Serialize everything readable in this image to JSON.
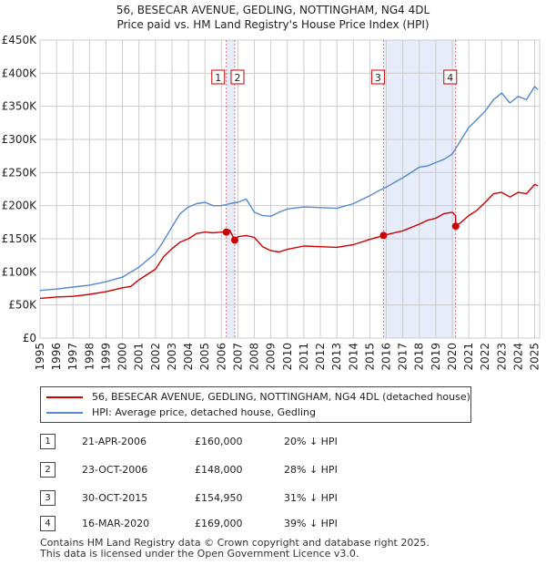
{
  "title_line1": "56, BESECAR AVENUE, GEDLING, NOTTINGHAM, NG4 4DL",
  "title_line2": "Price paid vs. HM Land Registry's House Price Index (HPI)",
  "legend": {
    "red_label": "56, BESECAR AVENUE, GEDLING, NOTTINGHAM, NG4 4DL (detached house)",
    "blue_label": "HPI: Average price, detached house, Gedling"
  },
  "transactions": [
    {
      "num": "1",
      "date": "21-APR-2006",
      "price": "£160,000",
      "pct": "20% ↓ HPI"
    },
    {
      "num": "2",
      "date": "23-OCT-2006",
      "price": "£148,000",
      "pct": "28% ↓ HPI"
    },
    {
      "num": "3",
      "date": "30-OCT-2015",
      "price": "£154,950",
      "pct": "31% ↓ HPI"
    },
    {
      "num": "4",
      "date": "16-MAR-2020",
      "price": "£169,000",
      "pct": "39% ↓ HPI"
    }
  ],
  "footer": {
    "line1": "Contains HM Land Registry data © Crown copyright and database right 2025.",
    "line2": "This data is licensed under the Open Government Licence v3.0."
  },
  "colors": {
    "red": "#cc0000",
    "blue": "#5588cc",
    "grid": "#cccccc",
    "shade": "#dde6f7"
  },
  "chart_data": {
    "type": "line",
    "title": "56, BESECAR AVENUE, GEDLING, NOTTINGHAM, NG4 4DL",
    "subtitle": "Price paid vs. HM Land Registry's House Price Index (HPI)",
    "xlabel": "",
    "ylabel": "",
    "xlim": [
      1995,
      2025.3
    ],
    "ylim": [
      0,
      450000
    ],
    "x_ticks": [
      1995,
      1996,
      1997,
      1998,
      1999,
      2000,
      2001,
      2002,
      2003,
      2004,
      2005,
      2006,
      2007,
      2008,
      2009,
      2010,
      2011,
      2012,
      2013,
      2014,
      2015,
      2016,
      2017,
      2018,
      2019,
      2020,
      2021,
      2022,
      2023,
      2024,
      2025
    ],
    "y_ticks": [
      0,
      50000,
      100000,
      150000,
      200000,
      250000,
      300000,
      350000,
      400000,
      450000
    ],
    "y_tick_labels": [
      "£0",
      "£50K",
      "£100K",
      "£150K",
      "£200K",
      "£250K",
      "£300K",
      "£350K",
      "£400K",
      "£450K"
    ],
    "shaded_ranges": [
      [
        2006.3,
        2006.81
      ],
      [
        2015.83,
        2020.21
      ]
    ],
    "sales": [
      {
        "label": "1",
        "x": 2006.3,
        "y": 160000
      },
      {
        "label": "2",
        "x": 2006.81,
        "y": 148000
      },
      {
        "label": "3",
        "x": 2015.83,
        "y": 154950
      },
      {
        "label": "4",
        "x": 2020.21,
        "y": 169000
      }
    ],
    "series": [
      {
        "name": "56, BESECAR AVENUE, GEDLING, NOTTINGHAM, NG4 4DL (detached house)",
        "color": "#cc0000",
        "x": [
          1995,
          1996,
          1997,
          1998,
          1999,
          2000,
          2000.5,
          2001,
          2002,
          2002.5,
          2003,
          2003.5,
          2004,
          2004.5,
          2005,
          2005.5,
          2006.0,
          2006.3,
          2006.5,
          2006.81,
          2007.0,
          2007.5,
          2008.0,
          2008.5,
          2009.0,
          2009.5,
          2010,
          2011,
          2012,
          2013,
          2014,
          2015,
          2015.83,
          2016,
          2017,
          2018,
          2018.5,
          2019,
          2019.5,
          2020.0,
          2020.2,
          2020.21,
          2020.5,
          2021,
          2021.5,
          2022,
          2022.5,
          2023,
          2023.5,
          2024,
          2024.5,
          2025,
          2025.2
        ],
        "y": [
          60000,
          62000,
          63000,
          66000,
          70000,
          76000,
          78000,
          88000,
          104000,
          123000,
          135000,
          145000,
          150000,
          158000,
          160000,
          159000,
          160000,
          160000,
          163000,
          148000,
          153000,
          155000,
          152000,
          138000,
          132000,
          130000,
          134000,
          139000,
          138000,
          137000,
          141000,
          149000,
          154950,
          156000,
          162000,
          172000,
          178000,
          181000,
          188000,
          190000,
          185000,
          169000,
          174000,
          185000,
          193000,
          205000,
          218000,
          220000,
          213000,
          220000,
          218000,
          232000,
          230000
        ]
      },
      {
        "name": "HPI: Average price, detached house, Gedling",
        "color": "#5588cc",
        "x": [
          1995,
          1996,
          1997,
          1998,
          1999,
          2000,
          2001,
          2002,
          2002.5,
          2003,
          2003.5,
          2004,
          2004.5,
          2005,
          2005.5,
          2006,
          2006.5,
          2007,
          2007.5,
          2008,
          2008.5,
          2009,
          2009.5,
          2010,
          2011,
          2012,
          2013,
          2014,
          2015,
          2015.5,
          2016,
          2017,
          2018,
          2018.5,
          2019,
          2019.5,
          2020,
          2020.5,
          2021,
          2021.5,
          2022,
          2022.5,
          2023,
          2023.5,
          2024,
          2024.5,
          2025,
          2025.2
        ],
        "y": [
          72000,
          74000,
          77000,
          80000,
          85000,
          92000,
          107000,
          128000,
          147000,
          168000,
          188000,
          198000,
          203000,
          205000,
          200000,
          200000,
          203000,
          205000,
          210000,
          190000,
          185000,
          184000,
          190000,
          195000,
          198000,
          197000,
          196000,
          203000,
          215000,
          222000,
          228000,
          242000,
          258000,
          260000,
          265000,
          270000,
          278000,
          298000,
          318000,
          330000,
          343000,
          360000,
          370000,
          355000,
          365000,
          360000,
          380000,
          375000
        ]
      }
    ]
  }
}
